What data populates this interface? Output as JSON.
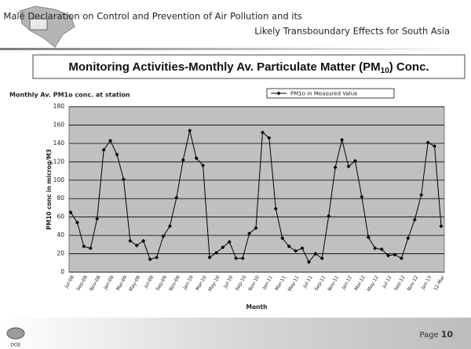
{
  "header": {
    "title_line1": "Malé Declaration on Control and Prevention of Air Pollution and its",
    "title_line2": "Likely Transboundary Effects for South Asia"
  },
  "heading": {
    "text": "Monitoring Activities-Monthly Av. Particulate Matter (PM",
    "sub": "10",
    "suffix": ") Conc."
  },
  "chart_data": {
    "type": "line",
    "title": "Monthly Av. PM1o conc. at station",
    "x_label": "Month",
    "y_label": "PM10 conc in microg/M3",
    "categories": [
      "Jul-08",
      null,
      "Sep-08",
      null,
      "Nov-08",
      null,
      "Jan-09",
      null,
      "Mar-09",
      null,
      "May-09",
      null,
      "Jul-09",
      null,
      "Sep-09",
      null,
      "Nov-09",
      null,
      "Jan-10",
      null,
      "Mar-10",
      null,
      "May-10",
      null,
      "Jul-10",
      null,
      "Sep-10",
      null,
      "Nov-10",
      null,
      "Jan-11",
      null,
      "Mar-11",
      null,
      "May-11",
      null,
      "Jul-11",
      null,
      "Sep-11",
      null,
      "Nov-11",
      null,
      "Jan-12",
      null,
      "Mar-12",
      null,
      "May-12",
      null,
      "Jul-12",
      null,
      "Sep-12",
      null,
      "Nov-12",
      null,
      "Jan-13",
      null,
      "12-Mar"
    ],
    "series": [
      {
        "name": "PM1o in Measured Value",
        "color": "#000000",
        "values": [
          65,
          54,
          28,
          26,
          58,
          133,
          143,
          128,
          101,
          34,
          29,
          34,
          14,
          16,
          39,
          50,
          81,
          122,
          154,
          124,
          116,
          16,
          21,
          27,
          33,
          15,
          15,
          42,
          48,
          152,
          146,
          69,
          37,
          28,
          23,
          26,
          11,
          20,
          15,
          61,
          114,
          144,
          115,
          121,
          82,
          38,
          26,
          25,
          18,
          19,
          15,
          37,
          57,
          84,
          141,
          137,
          50
        ]
      }
    ],
    "ylim": [
      0,
      180
    ],
    "yticks": [
      0,
      20,
      40,
      60,
      80,
      100,
      120,
      140,
      160,
      180
    ],
    "grid": true,
    "plot_background": "#c0c0c0",
    "legend": "top-right"
  },
  "footer": {
    "page_label": "Page",
    "page_number": "10",
    "logo_text": "DOE"
  }
}
